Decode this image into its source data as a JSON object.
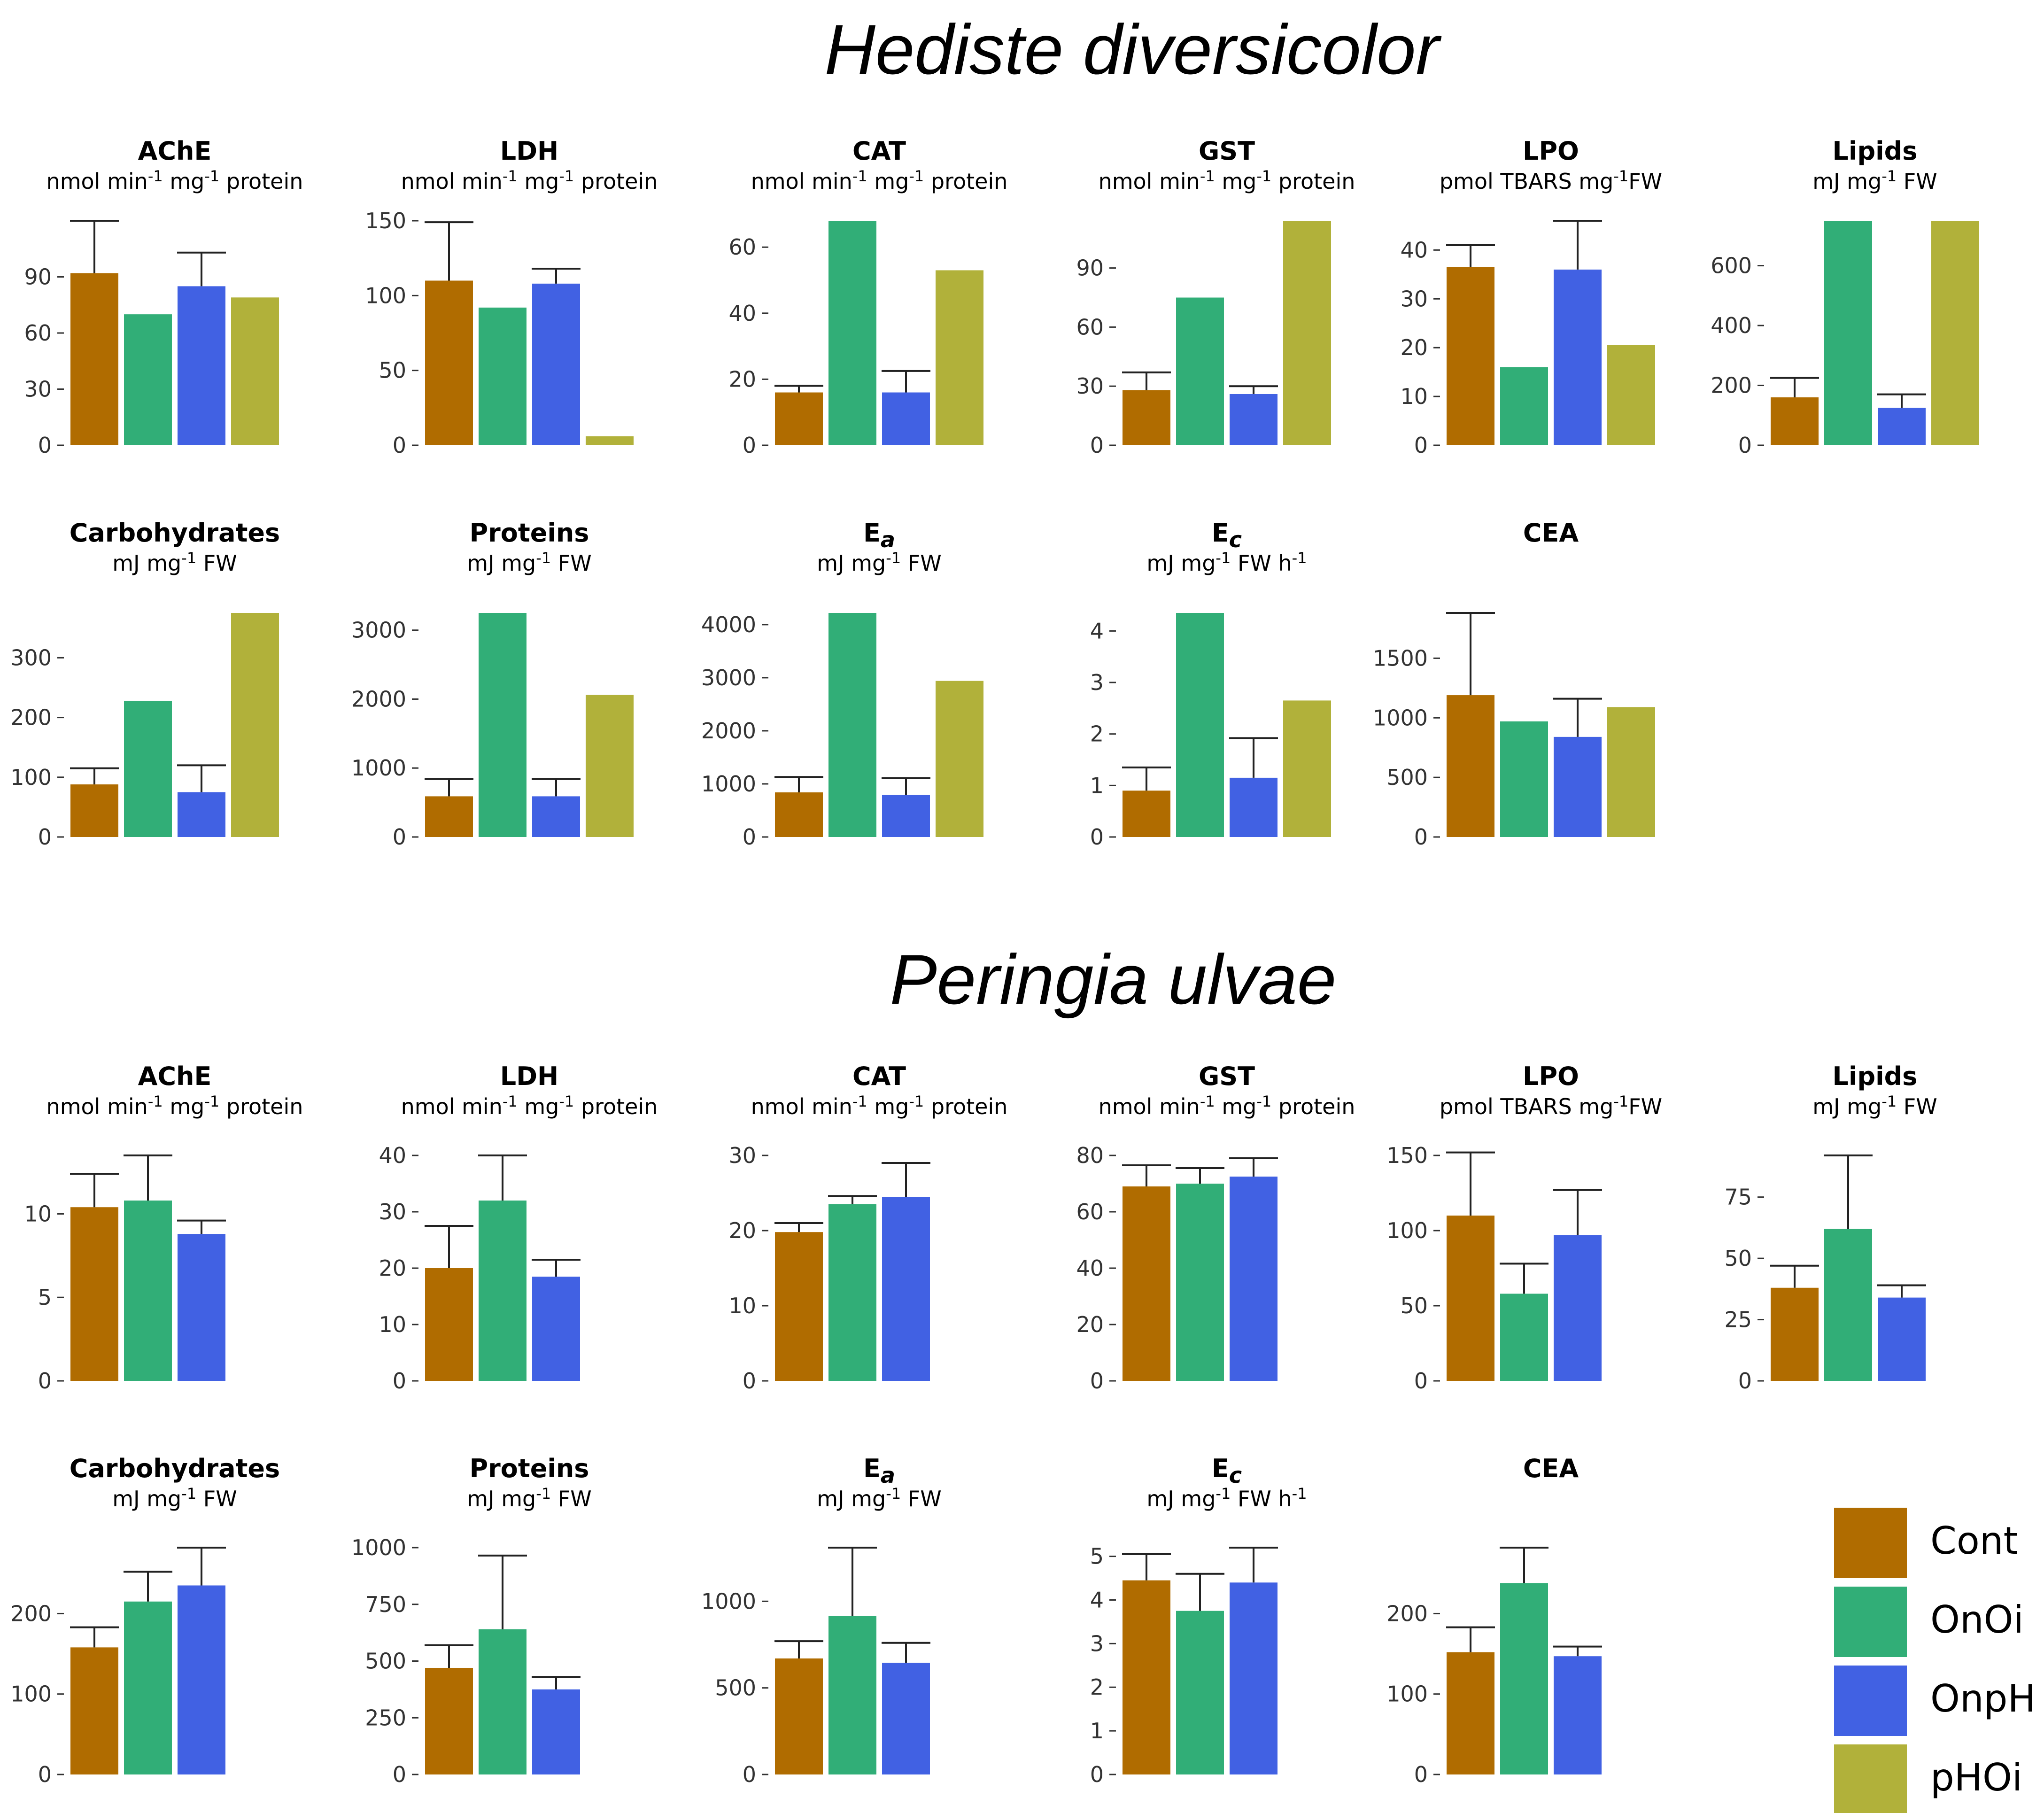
{
  "figure": {
    "species": [
      "Hediste diversicolor",
      "Peringia ulvae"
    ],
    "treatments": [
      "Cont",
      "OnOi",
      "OnpH",
      "pHOi"
    ],
    "colors": {
      "Cont": "#B06C00",
      "OnOi": "#31AE77",
      "OnpH": "#4161E3",
      "pHOi": "#B1B13A"
    }
  },
  "legend": {
    "items": [
      {
        "label": "Cont",
        "color": "#B06C00"
      },
      {
        "label": "OnOi",
        "color": "#31AE77"
      },
      {
        "label": "OnpH",
        "color": "#4161E3"
      },
      {
        "label": "pHOi",
        "color": "#B1B13A"
      }
    ]
  },
  "chart_data": [
    {
      "species": "Hediste diversicolor",
      "type": "bar",
      "title": "AChE",
      "subtitle": [
        [
          "nmol min",
          ""
        ],
        [
          "-1",
          "sup"
        ],
        [
          " mg",
          ""
        ],
        [
          "-1",
          "sup"
        ],
        [
          " protein",
          ""
        ]
      ],
      "categories": [
        "Cont",
        "OnOi",
        "OnpH",
        "pHOi"
      ],
      "values": [
        92,
        70,
        85,
        79
      ],
      "errors": [
        120,
        null,
        103,
        null
      ],
      "ylim": [
        0,
        120
      ],
      "ticks": [
        0,
        30,
        60,
        90
      ]
    },
    {
      "species": "Hediste diversicolor",
      "type": "bar",
      "title": "LDH",
      "subtitle": [
        [
          "nmol min",
          ""
        ],
        [
          "-1",
          "sup"
        ],
        [
          " mg",
          ""
        ],
        [
          "-1",
          "sup"
        ],
        [
          " protein",
          ""
        ]
      ],
      "categories": [
        "Cont",
        "OnOi",
        "OnpH",
        "pHOi"
      ],
      "values": [
        110,
        92,
        108,
        6
      ],
      "errors": [
        149,
        null,
        118,
        null
      ],
      "ylim": [
        0,
        150
      ],
      "ticks": [
        0,
        50,
        100,
        150
      ]
    },
    {
      "species": "Hediste diversicolor",
      "type": "bar",
      "title": "CAT",
      "subtitle": [
        [
          "nmol min",
          ""
        ],
        [
          "-1",
          "sup"
        ],
        [
          " mg",
          ""
        ],
        [
          "-1",
          "sup"
        ],
        [
          " protein",
          ""
        ]
      ],
      "categories": [
        "Cont",
        "OnOi",
        "OnpH",
        "pHOi"
      ],
      "values": [
        16,
        68,
        16,
        53
      ],
      "errors": [
        18,
        null,
        22.5,
        null
      ],
      "ylim": [
        0,
        68
      ],
      "ticks": [
        0,
        20,
        40,
        60
      ]
    },
    {
      "species": "Hediste diversicolor",
      "type": "bar",
      "title": "GST",
      "subtitle": [
        [
          "nmol min",
          ""
        ],
        [
          "-1",
          "sup"
        ],
        [
          " mg",
          ""
        ],
        [
          "-1",
          "sup"
        ],
        [
          " protein",
          ""
        ]
      ],
      "categories": [
        "Cont",
        "OnOi",
        "OnpH",
        "pHOi"
      ],
      "values": [
        28,
        75,
        26,
        114
      ],
      "errors": [
        37,
        null,
        30,
        null
      ],
      "ylim": [
        0,
        114
      ],
      "ticks": [
        0,
        30,
        60,
        90
      ]
    },
    {
      "species": "Hediste diversicolor",
      "type": "bar",
      "title": "LPO",
      "subtitle": [
        [
          "pmol TBARS mg",
          ""
        ],
        [
          "-1",
          "sup"
        ],
        [
          "FW",
          ""
        ]
      ],
      "categories": [
        "Cont",
        "OnOi",
        "OnpH",
        "pHOi"
      ],
      "values": [
        36.5,
        16,
        36,
        20.5
      ],
      "errors": [
        41,
        null,
        46,
        null
      ],
      "ylim": [
        0,
        46
      ],
      "ticks": [
        0,
        10,
        20,
        30,
        40
      ]
    },
    {
      "species": "Hediste diversicolor",
      "type": "bar",
      "title": "Lipids",
      "subtitle": [
        [
          "mJ mg",
          ""
        ],
        [
          "-1",
          "sup"
        ],
        [
          " FW",
          ""
        ]
      ],
      "categories": [
        "Cont",
        "OnOi",
        "OnpH",
        "pHOi"
      ],
      "values": [
        160,
        750,
        125,
        750
      ],
      "errors": [
        225,
        null,
        170,
        null
      ],
      "ylim": [
        0,
        750
      ],
      "ticks": [
        0,
        200,
        400,
        600
      ]
    },
    {
      "species": "Hediste diversicolor",
      "type": "bar",
      "title": "Carbohydrates",
      "subtitle": [
        [
          "mJ mg",
          ""
        ],
        [
          "-1",
          "sup"
        ],
        [
          " FW",
          ""
        ]
      ],
      "categories": [
        "Cont",
        "OnOi",
        "OnpH",
        "pHOi"
      ],
      "values": [
        88,
        228,
        75,
        375
      ],
      "errors": [
        115,
        null,
        120,
        null
      ],
      "ylim": [
        0,
        375
      ],
      "ticks": [
        0,
        100,
        200,
        300
      ]
    },
    {
      "species": "Hediste diversicolor",
      "type": "bar",
      "title": "Proteins",
      "subtitle": [
        [
          "mJ mg",
          ""
        ],
        [
          "-1",
          "sup"
        ],
        [
          " FW",
          ""
        ]
      ],
      "categories": [
        "Cont",
        "OnOi",
        "OnpH",
        "pHOi"
      ],
      "values": [
        590,
        3250,
        590,
        2060
      ],
      "errors": [
        840,
        null,
        840,
        null
      ],
      "ylim": [
        0,
        3250
      ],
      "ticks": [
        0,
        1000,
        2000,
        3000
      ]
    },
    {
      "species": "Hediste diversicolor",
      "type": "bar",
      "title": "Ea",
      "title_sub": "a",
      "subtitle": [
        [
          "mJ mg",
          ""
        ],
        [
          "-1",
          "sup"
        ],
        [
          " FW",
          ""
        ]
      ],
      "categories": [
        "Cont",
        "OnOi",
        "OnpH",
        "pHOi"
      ],
      "values": [
        840,
        4220,
        790,
        2940
      ],
      "errors": [
        1130,
        null,
        1110,
        null
      ],
      "ylim": [
        0,
        4220
      ],
      "ticks": [
        0,
        1000,
        2000,
        3000,
        4000
      ]
    },
    {
      "species": "Hediste diversicolor",
      "type": "bar",
      "title": "Ec",
      "title_sub": "c",
      "subtitle": [
        [
          "mJ mg",
          ""
        ],
        [
          "-1",
          "sup"
        ],
        [
          " FW h",
          ""
        ],
        [
          "-1",
          "sup"
        ]
      ],
      "categories": [
        "Cont",
        "OnOi",
        "OnpH",
        "pHOi"
      ],
      "values": [
        0.9,
        4.35,
        1.15,
        2.65
      ],
      "errors": [
        1.35,
        null,
        1.92,
        null
      ],
      "ylim": [
        0,
        4.35
      ],
      "ticks": [
        0,
        1,
        2,
        3,
        4
      ]
    },
    {
      "species": "Hediste diversicolor",
      "type": "bar",
      "title": "CEA",
      "subtitle": [],
      "categories": [
        "Cont",
        "OnOi",
        "OnpH",
        "pHOi"
      ],
      "values": [
        1190,
        970,
        840,
        1090
      ],
      "errors": [
        1880,
        null,
        1160,
        null
      ],
      "ylim": [
        0,
        1880
      ],
      "ticks": [
        0,
        500,
        1000,
        1500
      ]
    },
    {
      "species": "Peringia ulvae",
      "type": "bar",
      "title": "AChE",
      "subtitle": [
        [
          "nmol min",
          ""
        ],
        [
          "-1",
          "sup"
        ],
        [
          " mg",
          ""
        ],
        [
          "-1",
          "sup"
        ],
        [
          " protein",
          ""
        ]
      ],
      "categories": [
        "Cont",
        "OnOi",
        "OnpH"
      ],
      "values": [
        10.4,
        10.8,
        8.8
      ],
      "errors": [
        12.4,
        13.5,
        9.6
      ],
      "ylim": [
        0,
        13.5
      ],
      "ticks": [
        0,
        5,
        10
      ]
    },
    {
      "species": "Peringia ulvae",
      "type": "bar",
      "title": "LDH",
      "subtitle": [
        [
          "nmol min",
          ""
        ],
        [
          "-1",
          "sup"
        ],
        [
          " mg",
          ""
        ],
        [
          "-1",
          "sup"
        ],
        [
          " protein",
          ""
        ]
      ],
      "categories": [
        "Cont",
        "OnOi",
        "OnpH"
      ],
      "values": [
        20,
        32,
        18.5
      ],
      "errors": [
        27.5,
        40,
        21.5
      ],
      "ylim": [
        0,
        40
      ],
      "ticks": [
        0,
        10,
        20,
        30,
        40
      ]
    },
    {
      "species": "Peringia ulvae",
      "type": "bar",
      "title": "CAT",
      "subtitle": [
        [
          "nmol min",
          ""
        ],
        [
          "-1",
          "sup"
        ],
        [
          " mg",
          ""
        ],
        [
          "-1",
          "sup"
        ],
        [
          " protein",
          ""
        ]
      ],
      "categories": [
        "Cont",
        "OnOi",
        "OnpH"
      ],
      "values": [
        19.8,
        23.5,
        24.5
      ],
      "errors": [
        21,
        24.6,
        29
      ],
      "ylim": [
        0,
        30
      ],
      "ticks": [
        0,
        10,
        20,
        30
      ]
    },
    {
      "species": "Peringia ulvae",
      "type": "bar",
      "title": "GST",
      "subtitle": [
        [
          "nmol min",
          ""
        ],
        [
          "-1",
          "sup"
        ],
        [
          " mg",
          ""
        ],
        [
          "-1",
          "sup"
        ],
        [
          " protein",
          ""
        ]
      ],
      "categories": [
        "Cont",
        "OnOi",
        "OnpH"
      ],
      "values": [
        69,
        70,
        72.5
      ],
      "errors": [
        76.5,
        75.5,
        79
      ],
      "ylim": [
        0,
        80
      ],
      "ticks": [
        0,
        20,
        40,
        60,
        80
      ]
    },
    {
      "species": "Peringia ulvae",
      "type": "bar",
      "title": "LPO",
      "subtitle": [
        [
          "pmol TBARS mg",
          ""
        ],
        [
          "-1",
          "sup"
        ],
        [
          "FW",
          ""
        ]
      ],
      "categories": [
        "Cont",
        "OnOi",
        "OnpH"
      ],
      "values": [
        110,
        58,
        97
      ],
      "errors": [
        152,
        78,
        127
      ],
      "ylim": [
        0,
        150
      ],
      "ticks": [
        0,
        50,
        100,
        150
      ]
    },
    {
      "species": "Peringia ulvae",
      "type": "bar",
      "title": "Lipids",
      "subtitle": [
        [
          "mJ mg",
          ""
        ],
        [
          "-1",
          "sup"
        ],
        [
          " FW",
          ""
        ]
      ],
      "categories": [
        "Cont",
        "OnOi",
        "OnpH"
      ],
      "values": [
        38,
        62,
        34
      ],
      "errors": [
        47,
        92,
        39
      ],
      "ylim": [
        0,
        92
      ],
      "ticks": [
        0,
        25,
        50,
        75
      ]
    },
    {
      "species": "Peringia ulvae",
      "type": "bar",
      "title": "Carbohydrates",
      "subtitle": [
        [
          "mJ mg",
          ""
        ],
        [
          "-1",
          "sup"
        ],
        [
          " FW",
          ""
        ]
      ],
      "categories": [
        "Cont",
        "OnOi",
        "OnpH"
      ],
      "values": [
        158,
        215,
        235
      ],
      "errors": [
        183,
        252,
        282
      ],
      "ylim": [
        0,
        282
      ],
      "ticks": [
        0,
        100,
        200
      ]
    },
    {
      "species": "Peringia ulvae",
      "type": "bar",
      "title": "Proteins",
      "subtitle": [
        [
          "mJ mg",
          ""
        ],
        [
          "-1",
          "sup"
        ],
        [
          " FW",
          ""
        ]
      ],
      "categories": [
        "Cont",
        "OnOi",
        "OnpH"
      ],
      "values": [
        470,
        640,
        375
      ],
      "errors": [
        570,
        965,
        430
      ],
      "ylim": [
        0,
        1000
      ],
      "ticks": [
        0,
        250,
        500,
        750,
        1000
      ]
    },
    {
      "species": "Peringia ulvae",
      "type": "bar",
      "title": "Ea",
      "title_sub": "a",
      "subtitle": [
        [
          "mJ mg",
          ""
        ],
        [
          "-1",
          "sup"
        ],
        [
          " FW",
          ""
        ]
      ],
      "categories": [
        "Cont",
        "OnOi",
        "OnpH"
      ],
      "values": [
        670,
        915,
        645
      ],
      "errors": [
        770,
        1310,
        760
      ],
      "ylim": [
        0,
        1310
      ],
      "ticks": [
        0,
        500,
        1000
      ]
    },
    {
      "species": "Peringia ulvae",
      "type": "bar",
      "title": "Ec",
      "title_sub": "c",
      "subtitle": [
        [
          "mJ mg",
          ""
        ],
        [
          "-1",
          "sup"
        ],
        [
          " FW h",
          ""
        ],
        [
          "-1",
          "sup"
        ]
      ],
      "categories": [
        "Cont",
        "OnOi",
        "OnpH"
      ],
      "values": [
        4.45,
        3.75,
        4.4
      ],
      "errors": [
        5.05,
        4.6,
        5.2
      ],
      "ylim": [
        0,
        5.2
      ],
      "ticks": [
        0,
        1,
        2,
        3,
        4,
        5
      ]
    },
    {
      "species": "Peringia ulvae",
      "type": "bar",
      "title": "CEA",
      "subtitle": [],
      "categories": [
        "Cont",
        "OnOi",
        "OnpH"
      ],
      "values": [
        152,
        238,
        147
      ],
      "errors": [
        183,
        282,
        159
      ],
      "ylim": [
        0,
        282
      ],
      "ticks": [
        0,
        100,
        200
      ]
    }
  ]
}
